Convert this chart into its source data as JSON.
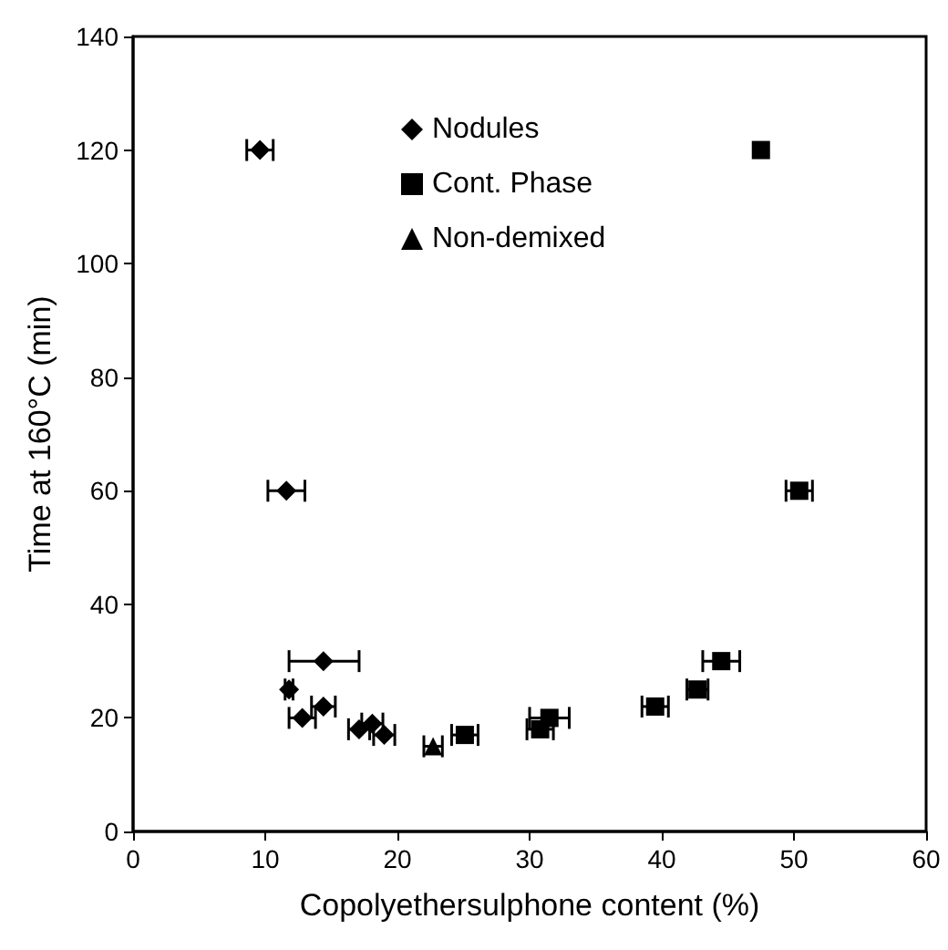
{
  "chart_data": {
    "type": "scatter",
    "xlabel": "Copolyethersulphone content (%)",
    "ylabel": "Time at 160°C (min)",
    "xlim": [
      0,
      60
    ],
    "xticks": [
      0,
      10,
      20,
      30,
      40,
      50,
      60
    ],
    "ylim": [
      0,
      140
    ],
    "yticks": [
      0,
      20,
      40,
      60,
      80,
      100,
      120,
      140
    ],
    "grid": false,
    "legend": "top",
    "series": [
      {
        "name": "Nodules",
        "color": "#000000",
        "marker": "diamond",
        "x": [
          9.6,
          11.6,
          14.4,
          11.8,
          12.8,
          14.4,
          17.1,
          18.1,
          19.0
        ],
        "values": [
          120,
          60,
          30,
          25,
          20,
          22,
          18,
          19,
          17
        ],
        "xerrors": [
          1,
          1.4,
          [
            11.8,
            17.1
          ],
          0.3,
          1,
          0.9,
          0.8,
          0.8,
          0.8
        ]
      },
      {
        "name": "Cont. Phase",
        "color": "#000000",
        "marker": "square",
        "x": [
          25.1,
          30.8,
          31.5,
          39.5,
          42.7,
          44.5,
          47.5,
          50.4
        ],
        "values": [
          17,
          18,
          20,
          22,
          25,
          30,
          120,
          60
        ],
        "xerrors": [
          1,
          1,
          1.5,
          1,
          0.8,
          1.4,
          null,
          1
        ]
      },
      {
        "name": "Non-demixed",
        "color": "#000000",
        "marker": "triangle",
        "x": [
          22.7
        ],
        "values": [
          15
        ],
        "xerrors": [
          0.7
        ]
      }
    ]
  }
}
